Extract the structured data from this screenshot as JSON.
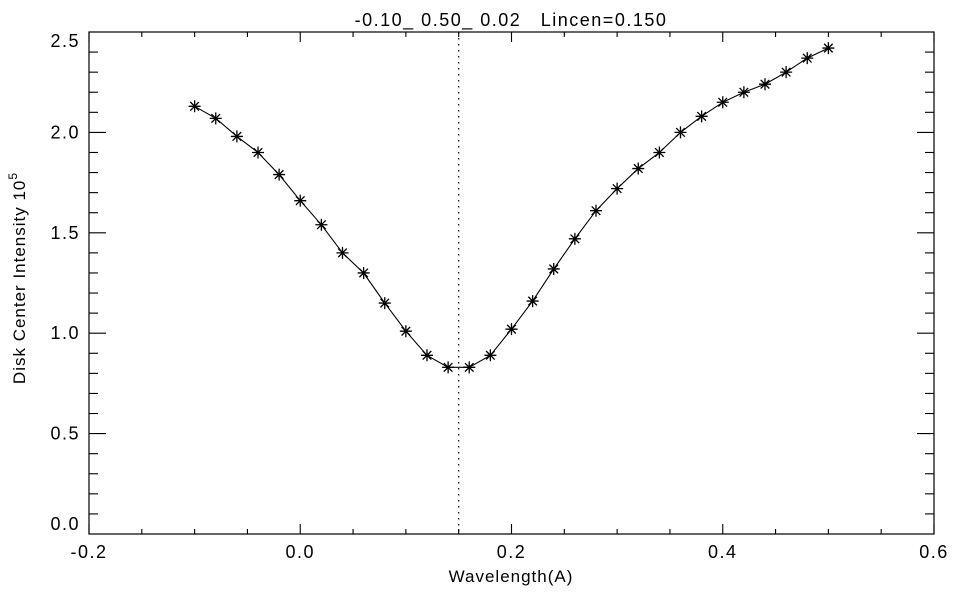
{
  "page": {
    "background_color": "#ffffff",
    "foreground_color": "#000000"
  },
  "chart_data": {
    "type": "line",
    "title": "-0.10_ 0.50_ 0.02   Lincen=0.150",
    "xlabel": "Wavelength(A)",
    "ylabel": "Disk Center Intensity 10",
    "ylabel_exponent": "5",
    "xlim": [
      -0.2,
      0.6
    ],
    "ylim": [
      0.0,
      2.5
    ],
    "x_major_ticks": [
      -0.2,
      0.0,
      0.2,
      0.4,
      0.6
    ],
    "x_tick_labels": [
      "-0.2",
      "0.0",
      "0.2",
      "0.4",
      "0.6"
    ],
    "x_minor_step": 0.05,
    "y_major_ticks": [
      0.0,
      0.5,
      1.0,
      1.5,
      2.0,
      2.5
    ],
    "y_tick_labels": [
      "0.0",
      "0.5",
      "1.0",
      "1.5",
      "2.0",
      "2.5"
    ],
    "y_minor_step": 0.1,
    "grid": false,
    "legend": "none",
    "marker": "asterisk",
    "line_color": "#000000",
    "background_color": "#ffffff",
    "reference_line": {
      "x": 0.15,
      "style": "dotted",
      "meaning": "line center Lincen=0.150"
    },
    "series": [
      {
        "name": "disk center intensity profile",
        "x": [
          -0.1,
          -0.08,
          -0.06,
          -0.04,
          -0.02,
          0.0,
          0.02,
          0.04,
          0.06,
          0.08,
          0.1,
          0.12,
          0.14,
          0.16,
          0.18,
          0.2,
          0.22,
          0.24,
          0.26,
          0.28,
          0.3,
          0.32,
          0.34,
          0.36,
          0.38,
          0.4,
          0.42,
          0.44,
          0.46,
          0.48,
          0.5
        ],
        "y": [
          2.13,
          2.07,
          1.98,
          1.9,
          1.79,
          1.66,
          1.54,
          1.4,
          1.3,
          1.15,
          1.01,
          0.89,
          0.83,
          0.83,
          0.89,
          1.02,
          1.16,
          1.32,
          1.47,
          1.61,
          1.72,
          1.82,
          1.9,
          2.0,
          2.08,
          2.15,
          2.2,
          2.24,
          2.3,
          2.37,
          2.42
        ]
      }
    ]
  }
}
